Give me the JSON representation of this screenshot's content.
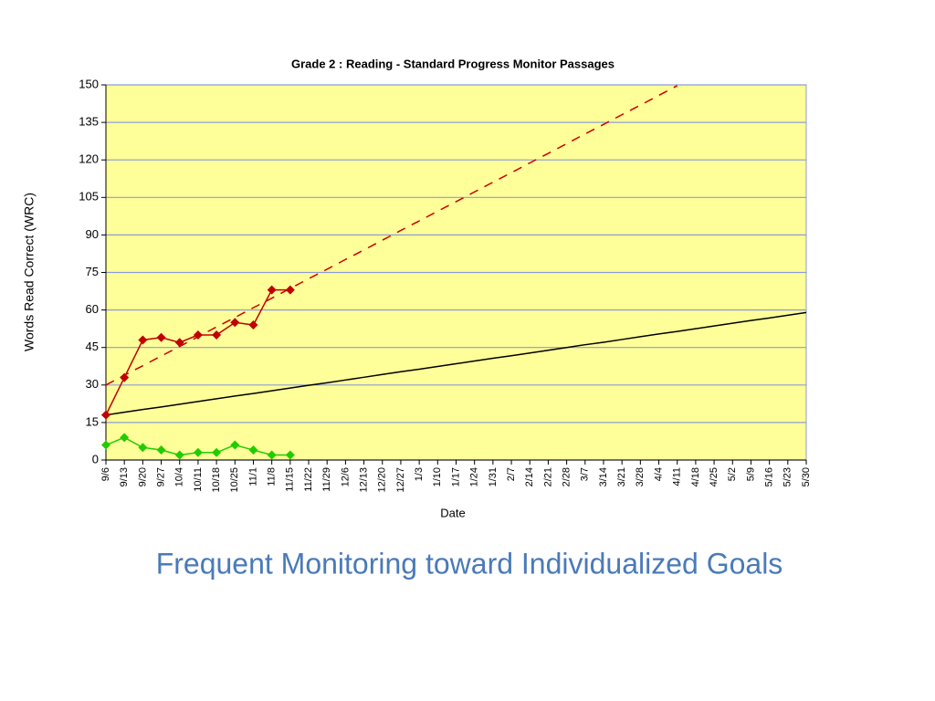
{
  "chart_data": {
    "type": "line",
    "title": "Grade 2 : Reading - Standard Progress Monitor Passages",
    "xlabel": "Date",
    "ylabel": "Words Read Correct (WRC)",
    "caption": "Frequent Monitoring toward Individualized Goals",
    "categories": [
      "9/6",
      "9/13",
      "9/20",
      "9/27",
      "10/4",
      "10/11",
      "10/18",
      "10/25",
      "11/1",
      "11/8",
      "11/15",
      "11/22",
      "11/29",
      "12/6",
      "12/13",
      "12/20",
      "12/27",
      "1/3",
      "1/10",
      "1/17",
      "1/24",
      "1/31",
      "2/7",
      "2/14",
      "2/21",
      "2/28",
      "3/7",
      "3/14",
      "3/21",
      "3/28",
      "4/4",
      "4/11",
      "4/18",
      "4/25",
      "5/2",
      "5/9",
      "5/16",
      "5/23",
      "5/30"
    ],
    "ylim": [
      0,
      150
    ],
    "yticks": [
      0,
      15,
      30,
      45,
      60,
      75,
      90,
      105,
      120,
      135,
      150
    ],
    "grid": true,
    "background": "#ffff99",
    "series": [
      {
        "color": "#000000",
        "dashed": false,
        "markers": false,
        "values": [
          18.0,
          19.1,
          20.2,
          21.2,
          22.3,
          23.4,
          24.5,
          25.6,
          26.6,
          27.7,
          28.8,
          29.9,
          30.9,
          32.0,
          33.1,
          34.2,
          35.3,
          36.3,
          37.4,
          38.5,
          39.6,
          40.7,
          41.7,
          42.8,
          43.9,
          45.0,
          46.1,
          47.1,
          48.2,
          49.3,
          50.4,
          51.4,
          52.5,
          53.6,
          54.7,
          55.8,
          56.8,
          57.9,
          59.0
        ]
      },
      {
        "color": "#cc0000",
        "dashed": true,
        "markers": false,
        "values": [
          30,
          33.9,
          37.7,
          41.6,
          45.4,
          49.3,
          53.2,
          57.0,
          60.9,
          64.7,
          68.6,
          72.5,
          76.3,
          80.2,
          84.0,
          87.9,
          91.8,
          95.6,
          99.5,
          103.3,
          107.2,
          111.1,
          114.9,
          118.8,
          122.6,
          126.5,
          130.4,
          134.2,
          138.1,
          141.9,
          145.8,
          149.7,
          null,
          null,
          null,
          null,
          null,
          null,
          null
        ]
      },
      {
        "color": "#c00000",
        "dashed": false,
        "markers": true,
        "values": [
          18,
          33,
          48,
          49,
          47,
          50,
          50,
          55,
          54,
          68,
          68,
          null,
          null,
          null,
          null,
          null,
          null,
          null,
          null,
          null,
          null,
          null,
          null,
          null,
          null,
          null,
          null,
          null,
          null,
          null,
          null,
          null,
          null,
          null,
          null,
          null,
          null,
          null,
          null
        ]
      },
      {
        "color": "#22cc00",
        "dashed": false,
        "markers": true,
        "values": [
          6,
          9,
          5,
          4,
          2,
          3,
          3,
          6,
          4,
          2,
          2,
          null,
          null,
          null,
          null,
          null,
          null,
          null,
          null,
          null,
          null,
          null,
          null,
          null,
          null,
          null,
          null,
          null,
          null,
          null,
          null,
          null,
          null,
          null,
          null,
          null,
          null,
          null,
          null
        ]
      }
    ]
  }
}
